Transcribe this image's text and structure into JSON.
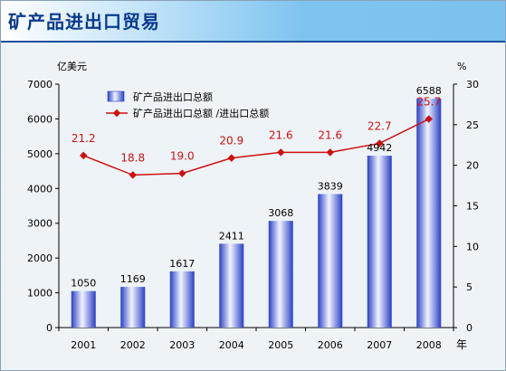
{
  "header": {
    "title": "矿产品进出口贸易"
  },
  "chart_data": {
    "type": "bar+line",
    "categories": [
      "2001",
      "2002",
      "2003",
      "2004",
      "2005",
      "2006",
      "2007",
      "2008"
    ],
    "series": [
      {
        "name": "矿产品进出口总额",
        "type": "bar",
        "axis": "left",
        "values": [
          1050,
          1169,
          1617,
          2411,
          3068,
          3839,
          4942,
          6588
        ],
        "color": "#3a5cd6"
      },
      {
        "name": "矿产品进出口总额 /进出口总额",
        "type": "line",
        "axis": "right",
        "values": [
          21.2,
          18.8,
          19.0,
          20.9,
          21.6,
          21.6,
          22.7,
          25.7
        ],
        "color": "#cc1111"
      }
    ],
    "bar_labels": [
      "1050",
      "1169",
      "1617",
      "2411",
      "3068",
      "3839",
      "4942",
      "6588"
    ],
    "line_labels": [
      "21.2",
      "18.8",
      "19.0",
      "20.9",
      "21.6",
      "21.6",
      "22.7",
      "25.7"
    ],
    "ylabel_left": "亿美元",
    "ylabel_right": "%",
    "xlabel": "年",
    "ylim_left": [
      0,
      7000
    ],
    "ylim_right": [
      0,
      30
    ],
    "yticks_left": [
      "0",
      "1000",
      "2000",
      "3000",
      "4000",
      "5000",
      "6000",
      "7000"
    ],
    "yticks_right": [
      "0",
      "5",
      "10",
      "15",
      "20",
      "25",
      "30"
    ],
    "grid": false,
    "legend_position": "top-left"
  }
}
